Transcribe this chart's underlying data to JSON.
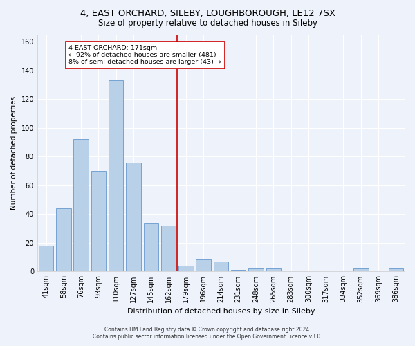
{
  "title": "4, EAST ORCHARD, SILEBY, LOUGHBOROUGH, LE12 7SX",
  "subtitle": "Size of property relative to detached houses in Sileby",
  "xlabel": "Distribution of detached houses by size in Sileby",
  "ylabel": "Number of detached properties",
  "bar_labels": [
    "41sqm",
    "58sqm",
    "76sqm",
    "93sqm",
    "110sqm",
    "127sqm",
    "145sqm",
    "162sqm",
    "179sqm",
    "196sqm",
    "214sqm",
    "231sqm",
    "248sqm",
    "265sqm",
    "283sqm",
    "300sqm",
    "317sqm",
    "334sqm",
    "352sqm",
    "369sqm",
    "386sqm"
  ],
  "bar_values": [
    18,
    44,
    92,
    70,
    133,
    76,
    34,
    32,
    4,
    9,
    7,
    1,
    2,
    2,
    0,
    0,
    0,
    0,
    2,
    0,
    2
  ],
  "bar_color": "#b8d0e8",
  "bar_edge_color": "#6699cc",
  "vline_color": "#cc0000",
  "annotation_line1": "4 EAST ORCHARD: 171sqm",
  "annotation_line2": "← 92% of detached houses are smaller (481)",
  "annotation_line3": "8% of semi-detached houses are larger (43) →",
  "annotation_box_color": "#ffffff",
  "annotation_box_edge": "#cc0000",
  "ylim": [
    0,
    165
  ],
  "yticks": [
    0,
    20,
    40,
    60,
    80,
    100,
    120,
    140,
    160
  ],
  "title_fontsize": 9.5,
  "subtitle_fontsize": 8.5,
  "tick_fontsize": 7,
  "xlabel_fontsize": 8,
  "ylabel_fontsize": 7.5,
  "footer_line1": "Contains HM Land Registry data © Crown copyright and database right 2024.",
  "footer_line2": "Contains public sector information licensed under the Open Government Licence v3.0.",
  "bg_color": "#eef2fb",
  "grid_color": "#ffffff",
  "vline_bar_index": 8
}
